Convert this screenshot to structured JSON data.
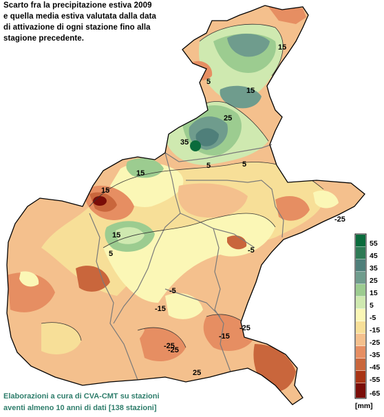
{
  "title_lines": [
    "Scarto fra la precipitazione estiva 2009",
    "e quella media estiva valutata dalla data",
    "di attivazione di ogni stazione fino alla",
    "stagione precedente."
  ],
  "credit_lines": [
    "Elaborazioni a cura di CVA-CMT su stazioni",
    "aventi almeno 10 anni di dati [138 stazioni]"
  ],
  "legend": {
    "unit": "[mm]",
    "classes": [
      {
        "label": "55",
        "color": "#0a6b3c"
      },
      {
        "label": "45",
        "color": "#2e7a55"
      },
      {
        "label": "35",
        "color": "#4f7f7a"
      },
      {
        "label": "25",
        "color": "#6f9c8d"
      },
      {
        "label": "15",
        "color": "#9ccc90"
      },
      {
        "label": "5",
        "color": "#cfe9b0"
      },
      {
        "label": "-5",
        "color": "#fbf7b6"
      },
      {
        "label": "-15",
        "color": "#f7df98"
      },
      {
        "label": "-25",
        "color": "#f4c08d"
      },
      {
        "label": "-35",
        "color": "#e68e62"
      },
      {
        "label": "-45",
        "color": "#c9663c"
      },
      {
        "label": "-55",
        "color": "#a83415"
      },
      {
        "label": "-65",
        "color": "#7a0d08"
      }
    ]
  },
  "contour_labels": [
    "15",
    "5",
    "15",
    "25",
    "35",
    "5",
    "5",
    "15",
    "15",
    "15",
    "5",
    "-25",
    "-5",
    "-15",
    "-5",
    "-15",
    "-25",
    "-25",
    "-25",
    "25"
  ]
}
